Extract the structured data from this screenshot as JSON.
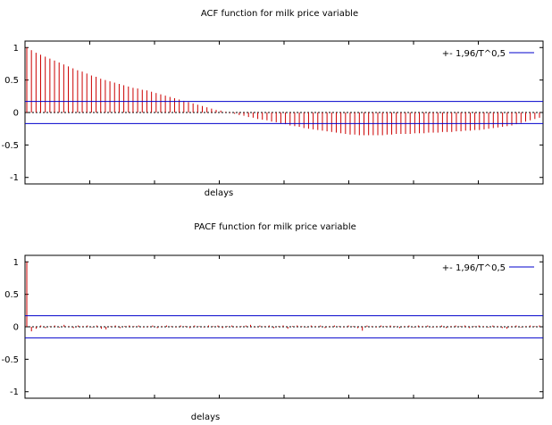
{
  "chart_data": [
    {
      "type": "bar",
      "title": "ACF function for milk price variable",
      "xlabel": "delays",
      "ylabel": "",
      "ylim": [
        -1.1,
        1.1
      ],
      "yticks": [
        "1",
        "0.5",
        "0",
        "-0.5",
        "-1"
      ],
      "x_tick_labels_visible": false,
      "grid": false,
      "legend_position": "top-right",
      "colors": {
        "bars": "#cc0000",
        "bounds": "#0000cc",
        "zero_line": "#000000"
      },
      "legend": {
        "label": "+- 1,96/T^0,5"
      },
      "bounds": 0.17,
      "values": [
        1.0,
        0.96,
        0.92,
        0.89,
        0.86,
        0.83,
        0.8,
        0.77,
        0.74,
        0.71,
        0.68,
        0.65,
        0.63,
        0.6,
        0.57,
        0.55,
        0.52,
        0.5,
        0.48,
        0.46,
        0.44,
        0.42,
        0.4,
        0.38,
        0.37,
        0.35,
        0.34,
        0.32,
        0.3,
        0.28,
        0.26,
        0.24,
        0.22,
        0.2,
        0.18,
        0.16,
        0.14,
        0.12,
        0.1,
        0.08,
        0.06,
        0.04,
        0.03,
        0.01,
        -0.01,
        -0.02,
        -0.04,
        -0.05,
        -0.07,
        -0.08,
        -0.1,
        -0.11,
        -0.12,
        -0.14,
        -0.15,
        -0.17,
        -0.18,
        -0.2,
        -0.21,
        -0.22,
        -0.24,
        -0.25,
        -0.26,
        -0.27,
        -0.28,
        -0.29,
        -0.3,
        -0.31,
        -0.32,
        -0.33,
        -0.34,
        -0.34,
        -0.35,
        -0.35,
        -0.35,
        -0.35,
        -0.35,
        -0.35,
        -0.34,
        -0.34,
        -0.33,
        -0.33,
        -0.33,
        -0.33,
        -0.32,
        -0.32,
        -0.32,
        -0.31,
        -0.31,
        -0.31,
        -0.3,
        -0.3,
        -0.3,
        -0.29,
        -0.29,
        -0.28,
        -0.28,
        -0.27,
        -0.27,
        -0.26,
        -0.25,
        -0.24,
        -0.23,
        -0.22,
        -0.21,
        -0.2,
        -0.18,
        -0.16,
        -0.14,
        -0.12,
        -0.1,
        -0.08
      ]
    },
    {
      "type": "bar",
      "title": "PACF function for milk price variable",
      "xlabel": "delays",
      "ylabel": "",
      "ylim": [
        -1.1,
        1.1
      ],
      "yticks": [
        "1",
        "0.5",
        "0",
        "-0.5",
        "-1"
      ],
      "x_tick_labels_visible": false,
      "grid": false,
      "legend_position": "top-right",
      "colors": {
        "bars": "#cc0000",
        "bounds": "#0000cc",
        "zero_line": "#000000"
      },
      "legend": {
        "label": "+- 1,96/T^0,5"
      },
      "bounds": 0.17,
      "values": [
        1.0,
        -0.07,
        -0.03,
        0.02,
        -0.02,
        0.01,
        0.02,
        -0.01,
        0.03,
        0.01,
        -0.02,
        0.02,
        0.01,
        0.02,
        -0.01,
        0.02,
        -0.03,
        -0.04,
        0.01,
        0.02,
        -0.02,
        0.01,
        0.02,
        0.01,
        0.02,
        -0.01,
        0.01,
        0.02,
        -0.02,
        0.01,
        0.02,
        0.01,
        -0.01,
        0.02,
        0.01,
        -0.02,
        0.02,
        0.01,
        -0.01,
        0.02,
        0.01,
        0.02,
        -0.02,
        0.01,
        0.02,
        -0.01,
        0.01,
        0.02,
        0.03,
        -0.01,
        0.02,
        0.01,
        0.02,
        -0.02,
        0.01,
        0.02,
        -0.03,
        0.01,
        0.02,
        0.01,
        -0.01,
        0.02,
        0.01,
        0.02,
        -0.02,
        0.01,
        0.02,
        0.01,
        -0.01,
        0.02,
        0.01,
        -0.02,
        -0.06,
        0.02,
        0.01,
        -0.01,
        0.02,
        0.01,
        0.02,
        0.01,
        -0.02,
        0.01,
        0.02,
        -0.01,
        0.02,
        0.01,
        0.02,
        -0.01,
        0.01,
        0.02,
        -0.02,
        0.01,
        0.02,
        0.01,
        0.02,
        -0.02,
        0.01,
        0.02,
        0.01,
        -0.01,
        0.02,
        0.01,
        -0.02,
        -0.03,
        0.01,
        0.02,
        -0.01,
        0.01,
        0.02,
        0.01,
        0.02
      ]
    }
  ]
}
